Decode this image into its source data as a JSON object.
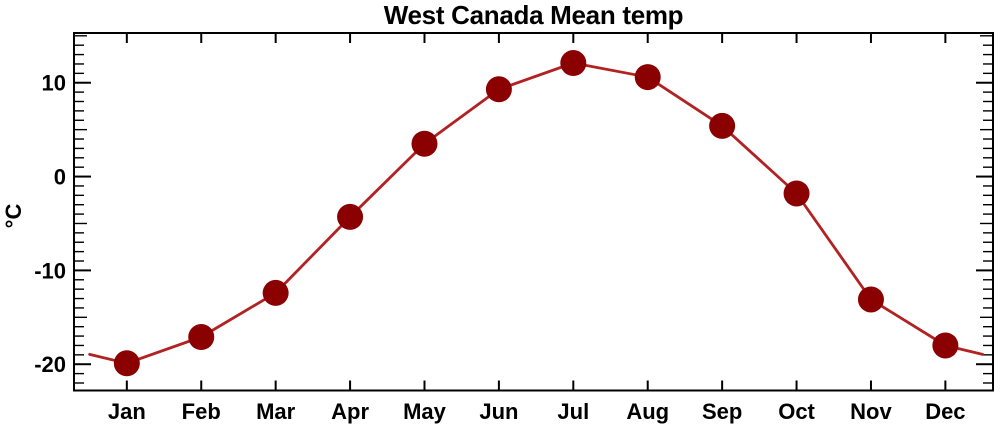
{
  "window": {
    "background": "#ffffff"
  },
  "chart_data": {
    "type": "line",
    "title": "West Canada Mean temp",
    "xlabel": "",
    "ylabel": "°C",
    "categories": [
      "Jan",
      "Feb",
      "Mar",
      "Apr",
      "May",
      "Jun",
      "Jul",
      "Aug",
      "Sep",
      "Oct",
      "Nov",
      "Dec"
    ],
    "values": [
      -19.9,
      -17.1,
      -12.4,
      -4.3,
      3.5,
      9.3,
      12.1,
      10.6,
      5.4,
      -1.8,
      -13.1,
      -18.0
    ],
    "cyclic_edge_value": -18.95,
    "yticks": [
      10,
      0,
      -10,
      -20
    ],
    "ytick_labels": [
      "10",
      "0",
      "-10",
      "-20"
    ],
    "y_minor_step": 1,
    "ylim": [
      -22.8,
      15.3
    ],
    "xlim": [
      -0.21,
      12.14
    ],
    "grid": false,
    "legend": null,
    "colors": {
      "line": "#b22222",
      "marker": "#8b0000",
      "frame": "#000000",
      "text": "#000000"
    },
    "marker_radius": 13
  }
}
